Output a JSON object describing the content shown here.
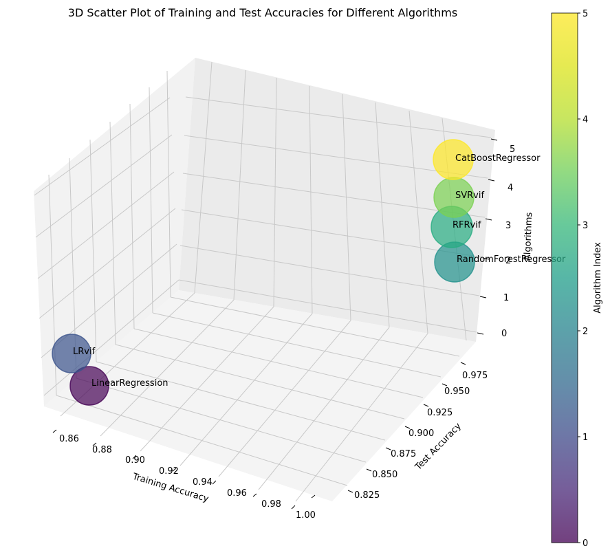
{
  "chart_data": {
    "type": "scatter",
    "projection": "3d",
    "title": "3D Scatter Plot of Training and Test Accuracies for Different Algorithms",
    "xlabel": "Training Accuracy",
    "ylabel": "Test Accuracy",
    "zlabel": "Algorithms",
    "x_ticks": [
      "0.86",
      "0.88",
      "0.90",
      "0.92",
      "0.94",
      "0.96",
      "0.98",
      "1.00"
    ],
    "y_ticks": [
      "0.825",
      "0.850",
      "0.875",
      "0.900",
      "0.925",
      "0.950",
      "0.975"
    ],
    "z_ticks": [
      "0",
      "1",
      "2",
      "3",
      "4",
      "5"
    ],
    "xlim": [
      0.847,
      1.007
    ],
    "ylim": [
      0.808,
      0.988
    ],
    "zlim": [
      0,
      5.3
    ],
    "grid": true,
    "colormap": "viridis",
    "colorbar": {
      "label": "Algorithm Index",
      "range": [
        0,
        5
      ],
      "ticks": [
        "0",
        "1",
        "2",
        "3",
        "4",
        "5"
      ]
    },
    "points": [
      {
        "label": "LinearRegression",
        "x": 0.87,
        "y": 0.83,
        "z": 0,
        "color": "#440154"
      },
      {
        "label": "LRvif",
        "x": 0.86,
        "y": 0.84,
        "z": 1,
        "color": "#3b528b"
      },
      {
        "label": "RandomForestRegressor",
        "x": 0.99,
        "y": 0.97,
        "z": 2,
        "color": "#21918c"
      },
      {
        "label": "RFRvif",
        "x": 0.99,
        "y": 0.97,
        "z": 3,
        "color": "#27ad81"
      },
      {
        "label": "SVRvif",
        "x": 0.99,
        "y": 0.975,
        "z": 4,
        "color": "#7ad151"
      },
      {
        "label": "CatBoostRegressor",
        "x": 0.99,
        "y": 0.98,
        "z": 5,
        "color": "#fde725"
      }
    ]
  }
}
